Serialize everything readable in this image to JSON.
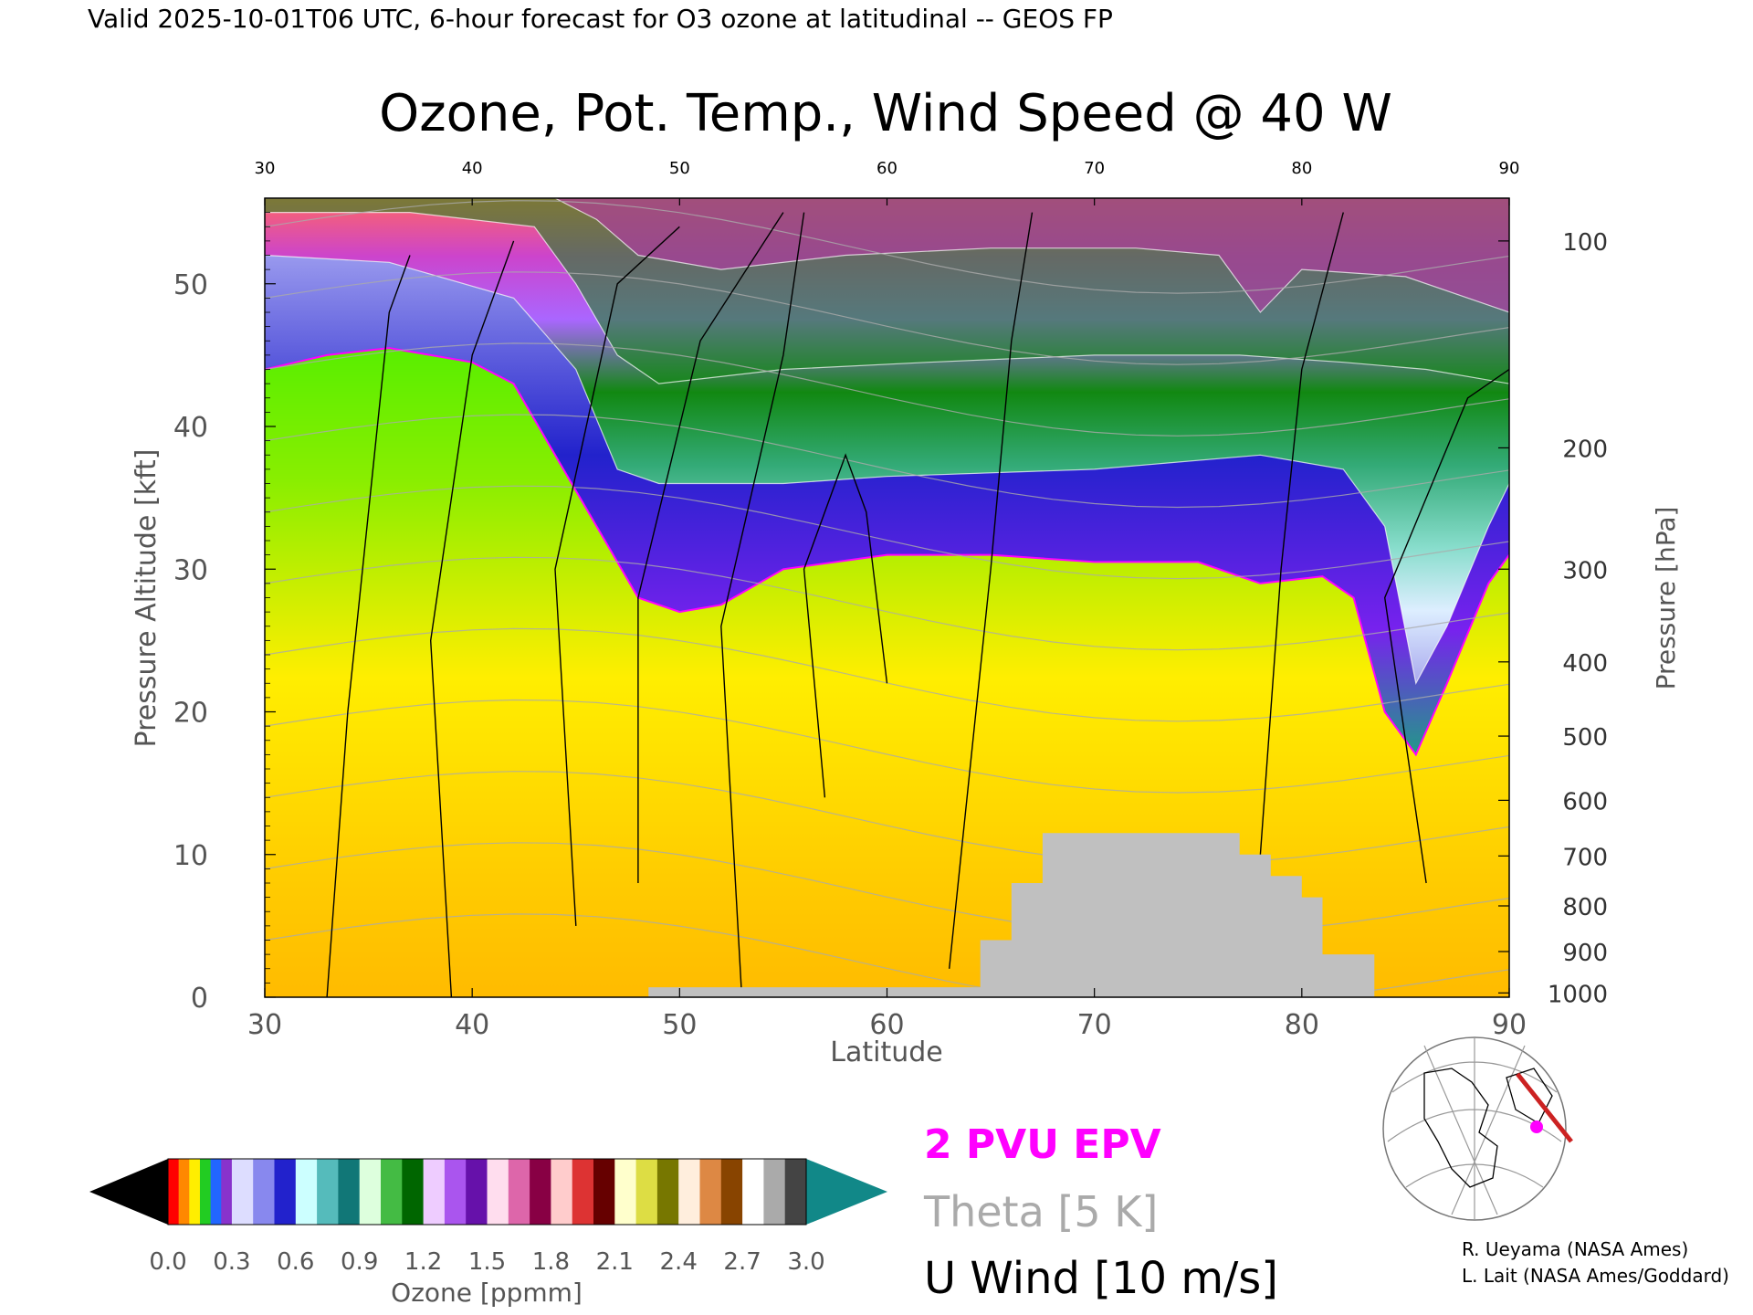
{
  "header": {
    "valid_line": "Valid 2025-10-01T06 UTC, 6-hour forecast for O3 ozone at latitudinal -- GEOS FP"
  },
  "chart_data": {
    "type": "heatmap",
    "title": "Ozone, Pot. Temp., Wind Speed @ 40 W",
    "xlabel": "Latitude",
    "ylabel_left": "Pressure Altitude [kft]",
    "ylabel_right": "Pressure [hPa]",
    "xlim": [
      30,
      90
    ],
    "ylim_kft": [
      0,
      56
    ],
    "x_ticks": [
      "30",
      "40",
      "50",
      "60",
      "70",
      "80",
      "90"
    ],
    "top_ticks": [
      "30",
      "40",
      "50",
      "60",
      "70",
      "80",
      "90"
    ],
    "y_ticks_kft": [
      {
        "v": 0,
        "label": "0"
      },
      {
        "v": 10,
        "label": "10"
      },
      {
        "v": 20,
        "label": "20"
      },
      {
        "v": 30,
        "label": "30"
      },
      {
        "v": 40,
        "label": "40"
      },
      {
        "v": 50,
        "label": "50"
      }
    ],
    "pressure_ticks": [
      {
        "kft": 53,
        "label": "100"
      },
      {
        "kft": 38.5,
        "label": "200"
      },
      {
        "kft": 30,
        "label": "300"
      },
      {
        "kft": 23.5,
        "label": "400"
      },
      {
        "kft": 18.3,
        "label": "500"
      },
      {
        "kft": 13.8,
        "label": "600"
      },
      {
        "kft": 9.9,
        "label": "700"
      },
      {
        "kft": 6.4,
        "label": "800"
      },
      {
        "kft": 3.2,
        "label": "900"
      },
      {
        "kft": 0.3,
        "label": "1000"
      }
    ],
    "tropopause_kft": [
      [
        30,
        44
      ],
      [
        33,
        45
      ],
      [
        36,
        45.5
      ],
      [
        40,
        44.5
      ],
      [
        42,
        43
      ],
      [
        44,
        38
      ],
      [
        46,
        33
      ],
      [
        48,
        28
      ],
      [
        50,
        27
      ],
      [
        52,
        27.5
      ],
      [
        55,
        30
      ],
      [
        60,
        31
      ],
      [
        65,
        31
      ],
      [
        70,
        30.5
      ],
      [
        75,
        30.5
      ],
      [
        78,
        29
      ],
      [
        81,
        29.5
      ],
      [
        82.5,
        28
      ],
      [
        84,
        20
      ],
      [
        85.5,
        17
      ],
      [
        87,
        22
      ],
      [
        89,
        29
      ],
      [
        90,
        31
      ]
    ],
    "ozone_levels_kft": [
      {
        "ppmm": 0.3,
        "points": [
          [
            30,
            52
          ],
          [
            36,
            51.5
          ],
          [
            42,
            49
          ],
          [
            45,
            44
          ],
          [
            47,
            37
          ],
          [
            49,
            36
          ],
          [
            55,
            36
          ],
          [
            60,
            36.5
          ],
          [
            70,
            37
          ],
          [
            78,
            38
          ],
          [
            82,
            37
          ],
          [
            84,
            33
          ],
          [
            85.5,
            22
          ],
          [
            87,
            26
          ],
          [
            89,
            33
          ],
          [
            90,
            36
          ]
        ]
      },
      {
        "ppmm": 0.9,
        "points": [
          [
            30,
            55
          ],
          [
            37,
            55
          ],
          [
            43,
            54
          ],
          [
            45,
            50
          ],
          [
            47,
            45
          ],
          [
            49,
            43
          ],
          [
            55,
            44
          ],
          [
            62,
            44.5
          ],
          [
            70,
            45
          ],
          [
            77,
            45
          ],
          [
            82,
            44.5
          ],
          [
            86,
            44
          ],
          [
            90,
            43
          ]
        ]
      },
      {
        "ppmm": 1.5,
        "points": [
          [
            30,
            56
          ],
          [
            44,
            56
          ],
          [
            46,
            54.5
          ],
          [
            48,
            52
          ],
          [
            52,
            51
          ],
          [
            58,
            52
          ],
          [
            65,
            52.5
          ],
          [
            72,
            52.5
          ],
          [
            76,
            52
          ],
          [
            78,
            48
          ],
          [
            80,
            51
          ],
          [
            85,
            50.5
          ],
          [
            90,
            48
          ]
        ]
      }
    ],
    "surface_mask": {
      "ppmm_color": "#c0c0c0",
      "lat_range": [
        64.5,
        83.5
      ],
      "max_kft": 11.5
    },
    "colorbar": {
      "label": "Ozone [ppmm]",
      "ticks": [
        "0.0",
        "0.3",
        "0.6",
        "0.9",
        "1.2",
        "1.5",
        "1.8",
        "2.1",
        "2.4",
        "2.7",
        "3.0"
      ],
      "range": [
        0,
        3
      ]
    },
    "legend": [
      {
        "label": "2 PVU EPV",
        "color": "#ff00ff"
      },
      {
        "label": "Theta [5 K]",
        "color": "#aaaaaa"
      },
      {
        "label": "U Wind [10 m/s]",
        "color": "#000000"
      }
    ]
  },
  "credits": {
    "line1": "R. Ueyama (NASA Ames)",
    "line2": "L. Lait (NASA Ames/Goddard)"
  },
  "colors": {
    "plot_green": "#33dd00",
    "plot_yellow": "#ffee00",
    "plot_orange": "#ffbb00",
    "tropopause_blue": "#2233cc",
    "epv_magenta": "#ff00ff",
    "flight_track": "#cc2222"
  }
}
